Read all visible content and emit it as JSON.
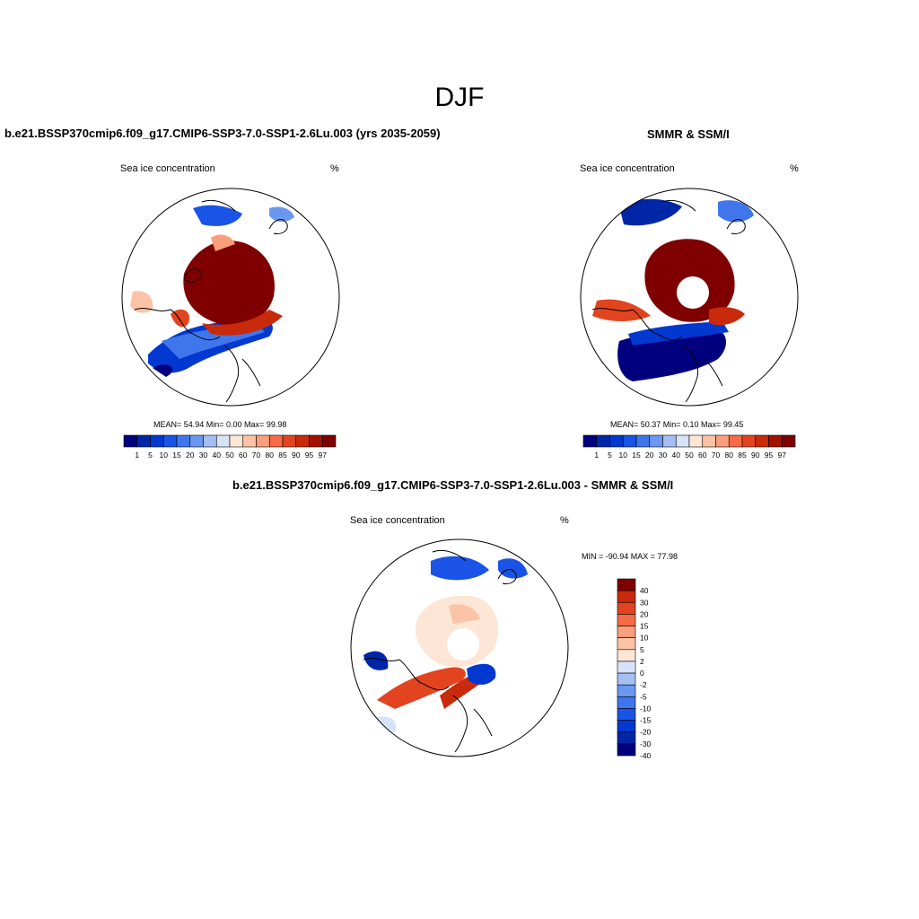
{
  "figure": {
    "title": "DJF",
    "colors": {
      "seq": [
        "#00007f",
        "#0026a8",
        "#0038d0",
        "#1a54e6",
        "#3f76ec",
        "#6a98f0",
        "#a5bff4",
        "#d6e3f8",
        "#fde6d6",
        "#fcc3a6",
        "#fb9e7b",
        "#f66a45",
        "#e2441f",
        "#c82a0b",
        "#a11000",
        "#7f0000"
      ],
      "div": [
        "#00007f",
        "#0026a8",
        "#0038d0",
        "#1a54e6",
        "#3f76ec",
        "#6a98f0",
        "#a5bff4",
        "#d6e3f8",
        "#fde6d6",
        "#fcc3a6",
        "#fb9e7b",
        "#f66a45",
        "#e2441f",
        "#c82a0b",
        "#7f0000"
      ],
      "land_outline": "#000000"
    }
  },
  "panels": {
    "model": {
      "title": "b.e21.BSSP370cmip6.f09_g17.CMIP6-SSP3-7.0-SSP1-2.6Lu.003 (yrs 2035-2059)",
      "left_label": "Sea ice concentration",
      "right_label": "%",
      "stats": "MEAN=  54.94  Min=   0.00  Max=  99.98",
      "colorbar_labels": [
        "1",
        "5",
        "10",
        "15",
        "20",
        "30",
        "40",
        "50",
        "60",
        "70",
        "80",
        "85",
        "90",
        "95",
        "97"
      ]
    },
    "obs": {
      "title": "SMMR & SSM/I",
      "left_label": "Sea ice concentration",
      "right_label": "%",
      "stats": "MEAN=  50.37  Min=   0.10  Max=  99.45",
      "colorbar_labels": [
        "1",
        "5",
        "10",
        "15",
        "20",
        "30",
        "40",
        "50",
        "60",
        "70",
        "80",
        "85",
        "90",
        "95",
        "97"
      ]
    },
    "diff": {
      "title": "b.e21.BSSP370cmip6.f09_g17.CMIP6-SSP3-7.0-SSP1-2.6Lu.003 - SMMR & SSM/I",
      "left_label": "Sea ice concentration",
      "right_label": "%",
      "stats": "MIN = -90.94 MAX =  77.98",
      "colorbar_labels": [
        "40",
        "30",
        "20",
        "15",
        "10",
        "5",
        "2",
        "0",
        "-2",
        "-5",
        "-10",
        "-15",
        "-20",
        "-30",
        "-40"
      ]
    }
  }
}
